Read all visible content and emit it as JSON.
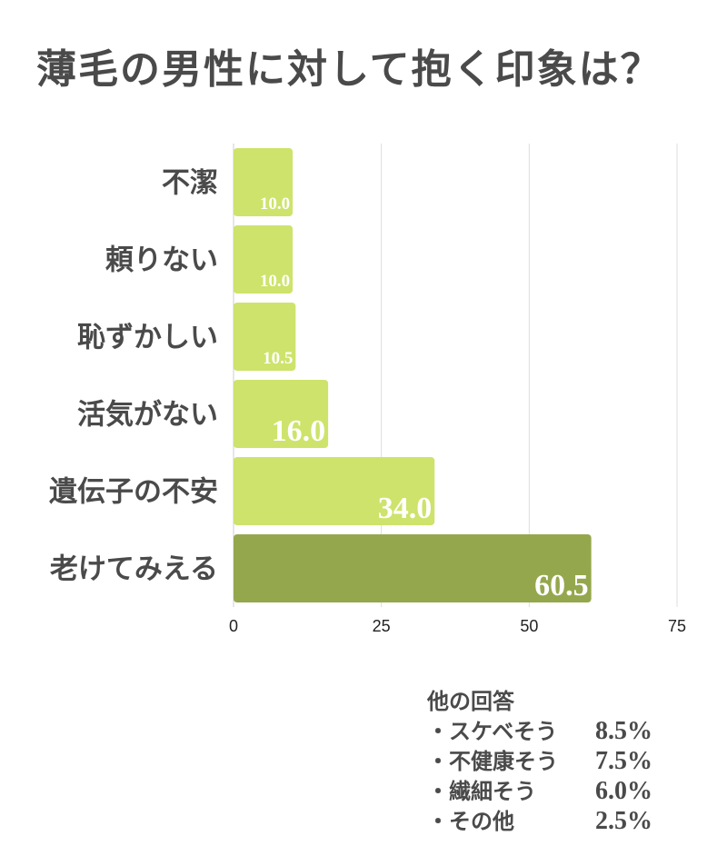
{
  "chart_data": {
    "type": "bar",
    "orientation": "horizontal",
    "title": "薄毛の男性に対して抱く印象は？",
    "categories": [
      "不潔",
      "頼りない",
      "恥ずかしい",
      "活気がない",
      "遺伝子の不安",
      "老けてみえる"
    ],
    "values": [
      10.0,
      10.0,
      10.5,
      16.0,
      34.0,
      60.5
    ],
    "data_labels": [
      "10.0",
      "10.0",
      "10.5",
      "16.0",
      "34.0",
      "60.5"
    ],
    "xlim": [
      0,
      75
    ],
    "xticks": [
      "0",
      "25",
      "50",
      "75"
    ],
    "grid": true,
    "colors": {
      "default": "#cde36b",
      "highlight": "#95a74d"
    }
  },
  "other_answers": {
    "heading": "他の回答",
    "items": [
      {
        "label": "・スケベそう",
        "value": "8.5%"
      },
      {
        "label": "・不健康そう",
        "value": "7.5%"
      },
      {
        "label": "・繊細そう",
        "value": "6.0%"
      },
      {
        "label": "・その他",
        "value": "2.5%"
      }
    ]
  }
}
